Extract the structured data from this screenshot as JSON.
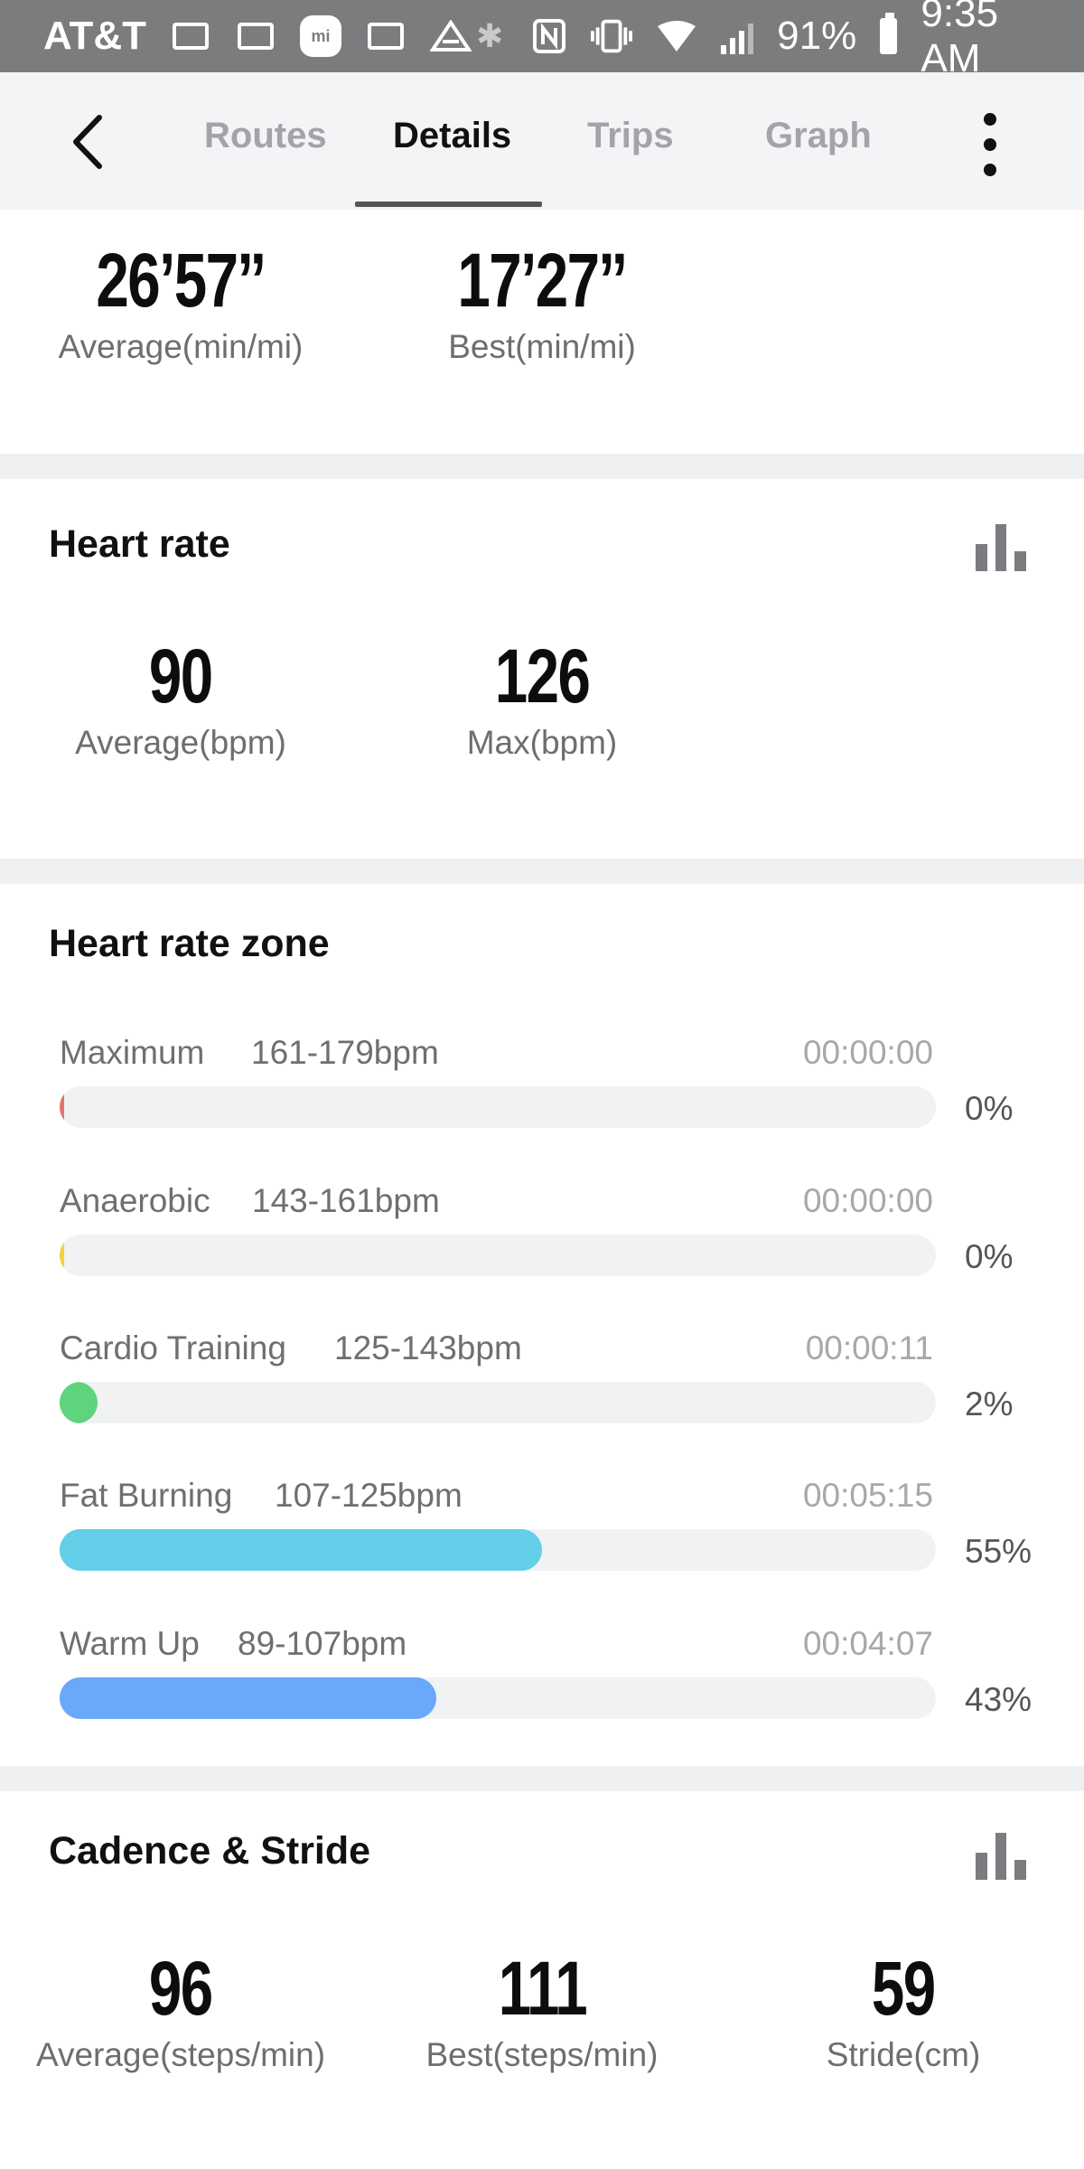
{
  "status_bar": {
    "carrier": "AT&T",
    "battery": "91%",
    "time": "9:35 AM",
    "icons": [
      "gmail-icon",
      "gmail-icon",
      "mi-fit-icon",
      "image-icon",
      "arrow-icon",
      "bluetooth-icon",
      "nfc-icon",
      "vibrate-icon",
      "wifi-icon",
      "signal-icon",
      "battery-icon"
    ],
    "mi_label": "mi"
  },
  "nav": {
    "tabs": [
      "Routes",
      "Details",
      "Trips",
      "Graph"
    ],
    "active_tab": "Details"
  },
  "pace": {
    "average_value": "26’57’’",
    "average_label": "Average(min/mi)",
    "best_value": "17’27’’",
    "best_label": "Best(min/mi)"
  },
  "heart_rate": {
    "title": "Heart rate",
    "average_value": "90",
    "average_label": "Average(bpm)",
    "max_value": "126",
    "max_label": "Max(bpm)"
  },
  "heart_rate_zone": {
    "title": "Heart rate zone",
    "zones": [
      {
        "name": "Maximum",
        "range": "161-179bpm",
        "time": "00:00:00",
        "percent_label": "0%",
        "fraction": 0.0,
        "color": "#e2736f"
      },
      {
        "name": "Anaerobic",
        "range": "143-161bpm",
        "time": "00:00:00",
        "percent_label": "0%",
        "fraction": 0.0,
        "color": "#f5d23a"
      },
      {
        "name": "Cardio Training",
        "range": "125-143bpm",
        "time": "00:00:11",
        "percent_label": "2%",
        "fraction": 0.02,
        "color": "#5ed47c"
      },
      {
        "name": "Fat Burning",
        "range": "107-125bpm",
        "time": "00:05:15",
        "percent_label": "55%",
        "fraction": 0.55,
        "color": "#63cfe8"
      },
      {
        "name": "Warm Up",
        "range": "89-107bpm",
        "time": "00:04:07",
        "percent_label": "43%",
        "fraction": 0.43,
        "color": "#6aa8fb"
      }
    ]
  },
  "cadence": {
    "title": "Cadence & Stride",
    "average_value": "96",
    "average_label": "Average(steps/min)",
    "best_value": "111",
    "best_label": "Best(steps/min)",
    "stride_value": "59",
    "stride_label": "Stride(cm)"
  }
}
